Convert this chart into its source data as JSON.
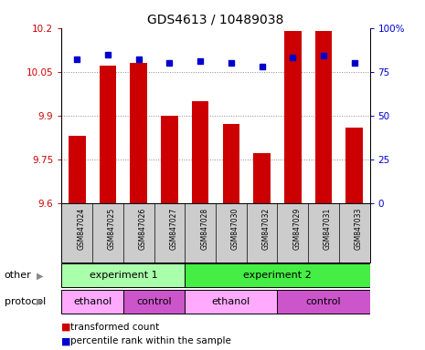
{
  "title": "GDS4613 / 10489038",
  "samples": [
    "GSM847024",
    "GSM847025",
    "GSM847026",
    "GSM847027",
    "GSM847028",
    "GSM847030",
    "GSM847032",
    "GSM847029",
    "GSM847031",
    "GSM847033"
  ],
  "bar_values": [
    9.83,
    10.07,
    10.08,
    9.9,
    9.95,
    9.87,
    9.77,
    10.19,
    10.19,
    9.86
  ],
  "percentile_values": [
    82,
    85,
    82,
    80,
    81,
    80,
    78,
    83,
    84,
    80
  ],
  "ylim_left": [
    9.6,
    10.2
  ],
  "ylim_right": [
    0,
    100
  ],
  "yticks_left": [
    9.6,
    9.75,
    9.9,
    10.05,
    10.2
  ],
  "yticks_right": [
    0,
    25,
    50,
    75,
    100
  ],
  "ytick_labels_left": [
    "9.6",
    "9.75",
    "9.9",
    "10.05",
    "10.2"
  ],
  "ytick_labels_right": [
    "0",
    "25",
    "50",
    "75",
    "100%"
  ],
  "bar_color": "#cc0000",
  "dot_color": "#0000cc",
  "bar_bottom": 9.6,
  "groups_other": [
    {
      "label": "experiment 1",
      "start": 0,
      "end": 4,
      "color": "#aaffaa"
    },
    {
      "label": "experiment 2",
      "start": 4,
      "end": 10,
      "color": "#44ee44"
    }
  ],
  "groups_protocol": [
    {
      "label": "ethanol",
      "start": 0,
      "end": 2,
      "color": "#ffaaff"
    },
    {
      "label": "control",
      "start": 2,
      "end": 4,
      "color": "#cc55cc"
    },
    {
      "label": "ethanol",
      "start": 4,
      "end": 7,
      "color": "#ffaaff"
    },
    {
      "label": "control",
      "start": 7,
      "end": 10,
      "color": "#cc55cc"
    }
  ],
  "legend_items": [
    {
      "label": "transformed count",
      "color": "#cc0000"
    },
    {
      "label": "percentile rank within the sample",
      "color": "#0000cc"
    }
  ],
  "other_label": "other",
  "protocol_label": "protocol",
  "grid_color": "#888888",
  "tick_label_color_left": "#cc0000",
  "tick_label_color_right": "#0000cc",
  "sample_bg_color": "#cccccc"
}
